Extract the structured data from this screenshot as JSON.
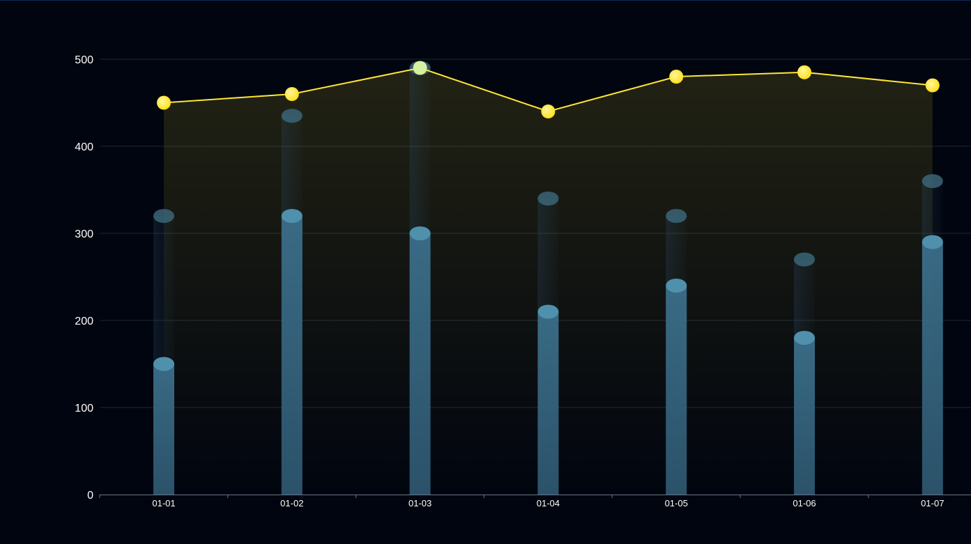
{
  "chart_data": {
    "type": "bar",
    "categories": [
      "01-01",
      "01-02",
      "01-03",
      "01-04",
      "01-05",
      "01-06",
      "01-07"
    ],
    "yticks": [
      "0",
      "100",
      "200",
      "300",
      "400",
      "500"
    ],
    "ylim": [
      0,
      500
    ],
    "grid": true,
    "title": "",
    "xlabel": "",
    "ylabel": "",
    "series": [
      {
        "type": "bar",
        "values": [
          150,
          320,
          300,
          210,
          240,
          180,
          290
        ],
        "color": "#3f7fa0"
      },
      {
        "type": "bar-shadow",
        "values": [
          320,
          435,
          490,
          340,
          320,
          270,
          360
        ],
        "color": "#3f7fa0"
      },
      {
        "type": "line-area",
        "values": [
          450,
          460,
          490,
          440,
          480,
          485,
          470
        ],
        "color": "#ffe833"
      }
    ]
  }
}
